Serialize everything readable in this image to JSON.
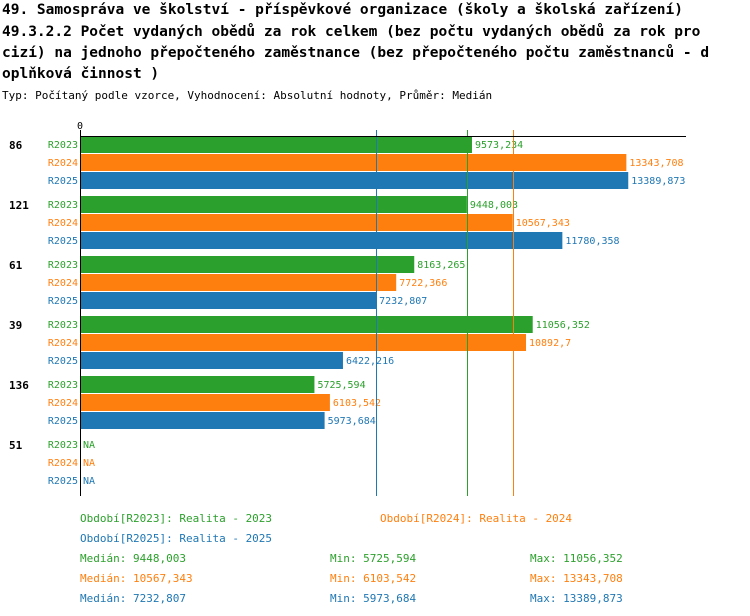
{
  "header": {
    "line1": "49. Samospráva ve školství - příspěvkové organizace (školy a školská zařízení)",
    "line2": "49.3.2.2 Počet vydaných obědů za rok celkem (bez počtu vydaných obědů za rok pro",
    "line3": "cizí) na jednoho přepočteného zaměstnance (bez přepočteného počtu zaměstnanců - d",
    "line4": "oplňková činnost )",
    "subtitle": "Typ: Počítaný podle vzorce, Vyhodnocení: Absolutní hodnoty, Průměr: Medián"
  },
  "colors": {
    "R2023": "#2ca02c",
    "R2024": "#ff7f0e",
    "R2025": "#1f77b4"
  },
  "chart_data": {
    "type": "bar",
    "orientation": "horizontal",
    "title": "49.3.2.2 Počet vydaných obědů za rok celkem (bez počtu vydaných obědů za rok pro cizí) na jednoho přepočteného zaměstnance (bez přepočteného počtu zaměstnanců - doplňková činnost )",
    "axis_zero_label": "0",
    "xlim": [
      0,
      14800
    ],
    "series_names": [
      "R2023",
      "R2024",
      "R2025"
    ],
    "groups": [
      {
        "id": "86",
        "values": [
          9573.234,
          13343.708,
          13389.873
        ],
        "labels": [
          "9573,234",
          "13343,708",
          "13389,873"
        ]
      },
      {
        "id": "121",
        "values": [
          9448.003,
          10567.343,
          11780.358
        ],
        "labels": [
          "9448,003",
          "10567,343",
          "11780,358"
        ]
      },
      {
        "id": "61",
        "values": [
          8163.265,
          7722.366,
          7232.807
        ],
        "labels": [
          "8163,265",
          "7722,366",
          "7232,807"
        ]
      },
      {
        "id": "39",
        "values": [
          11056.352,
          10892.7,
          6422.216
        ],
        "labels": [
          "11056,352",
          "10892,7",
          "6422,216"
        ]
      },
      {
        "id": "136",
        "values": [
          5725.594,
          6103.542,
          5973.684
        ],
        "labels": [
          "5725,594",
          "6103,542",
          "5973,684"
        ]
      },
      {
        "id": "51",
        "values": [
          null,
          null,
          null
        ],
        "labels": [
          "NA",
          "NA",
          "NA"
        ]
      }
    ],
    "median_lines": [
      {
        "series": "R2023",
        "value": 9448.003
      },
      {
        "series": "R2024",
        "value": 10567.343
      },
      {
        "series": "R2025",
        "value": 7232.807
      }
    ]
  },
  "legend": {
    "r2023": "Období[R2023]: Realita - 2023",
    "r2024": "Období[R2024]: Realita - 2024",
    "r2025": "Období[R2025]: Realita - 2025"
  },
  "stats": [
    {
      "median": "Medián: 9448,003",
      "min": "Min: 5725,594",
      "max": "Max: 11056,352"
    },
    {
      "median": "Medián: 10567,343",
      "min": "Min: 6103,542",
      "max": "Max: 13343,708"
    },
    {
      "median": "Medián: 7232,807",
      "min": "Min: 5973,684",
      "max": "Max: 13389,873"
    }
  ]
}
